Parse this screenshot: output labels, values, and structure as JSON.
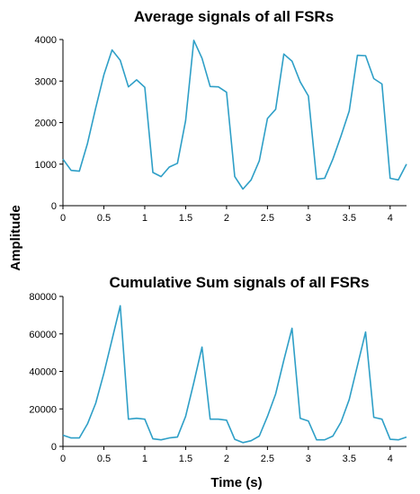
{
  "figure": {
    "shared_ylabel": "Amplitude",
    "line_color": "#2E9FC7"
  },
  "chart_data": [
    {
      "type": "line",
      "title": "Average signals of all FSRs",
      "xlabel": "",
      "ylabel": "Amplitude",
      "xlim": [
        0,
        4.2
      ],
      "ylim": [
        0,
        4000
      ],
      "xticks": [
        0,
        0.5,
        1,
        1.5,
        2,
        2.5,
        3,
        3.5,
        4
      ],
      "xtick_labels": [
        "0",
        "0.5",
        "1",
        "1.5",
        "2",
        "2.5",
        "3",
        "3.5",
        "4"
      ],
      "yticks": [
        0,
        1000,
        2000,
        3000,
        4000
      ],
      "ytick_labels": [
        "0",
        "1000",
        "2000",
        "3000",
        "4000"
      ],
      "grid": false,
      "series": [
        {
          "x": [
            0.0,
            0.1,
            0.2,
            0.3,
            0.4,
            0.5,
            0.6,
            0.7,
            0.8,
            0.9,
            1.0,
            1.1,
            1.2,
            1.3,
            1.4,
            1.5,
            1.6,
            1.7,
            1.8,
            1.9,
            2.0,
            2.1,
            2.2,
            2.3,
            2.4,
            2.5,
            2.6,
            2.7,
            2.8,
            2.9,
            3.0,
            3.1,
            3.2,
            3.3,
            3.4,
            3.5,
            3.6,
            3.7,
            3.8,
            3.9,
            4.0,
            4.1,
            4.2
          ],
          "y": [
            1120,
            850,
            830,
            1500,
            2350,
            3150,
            3750,
            3500,
            2860,
            3030,
            2850,
            800,
            700,
            930,
            1020,
            2050,
            3980,
            3550,
            2870,
            2860,
            2730,
            700,
            400,
            620,
            1080,
            2100,
            2320,
            3650,
            3480,
            2980,
            2640,
            640,
            660,
            1120,
            1680,
            2280,
            3620,
            3610,
            3060,
            2930,
            660,
            620,
            1000
          ]
        }
      ]
    },
    {
      "type": "line",
      "title": "Cumulative Sum signals of all FSRs",
      "xlabel": "Time (s)",
      "ylabel": "Amplitude",
      "xlim": [
        0,
        4.2
      ],
      "ylim": [
        0,
        80000
      ],
      "xticks": [
        0,
        0.5,
        1,
        1.5,
        2,
        2.5,
        3,
        3.5,
        4
      ],
      "xtick_labels": [
        "0",
        "0.5",
        "1",
        "1.5",
        "2",
        "2.5",
        "3",
        "3.5",
        "4"
      ],
      "yticks": [
        0,
        20000,
        40000,
        60000,
        80000
      ],
      "ytick_labels": [
        "0",
        "20000",
        "40000",
        "60000",
        "80000"
      ],
      "grid": false,
      "series": [
        {
          "x": [
            0.0,
            0.1,
            0.2,
            0.3,
            0.4,
            0.5,
            0.6,
            0.7,
            0.8,
            0.9,
            1.0,
            1.1,
            1.2,
            1.3,
            1.4,
            1.5,
            1.6,
            1.7,
            1.8,
            1.9,
            2.0,
            2.1,
            2.2,
            2.3,
            2.4,
            2.5,
            2.6,
            2.7,
            2.8,
            2.9,
            3.0,
            3.1,
            3.2,
            3.3,
            3.4,
            3.5,
            3.6,
            3.7,
            3.8,
            3.9,
            4.0,
            4.1,
            4.2
          ],
          "y": [
            6000,
            4500,
            4500,
            12000,
            23000,
            39000,
            57000,
            75000,
            14500,
            15000,
            14500,
            4000,
            3500,
            4500,
            5000,
            16000,
            34000,
            53000,
            14500,
            14500,
            14000,
            3800,
            2000,
            3000,
            5500,
            16000,
            28000,
            46000,
            63000,
            15000,
            13500,
            3500,
            3500,
            5500,
            13000,
            25000,
            43000,
            61000,
            15500,
            14500,
            3800,
            3500,
            5000
          ]
        }
      ]
    }
  ]
}
